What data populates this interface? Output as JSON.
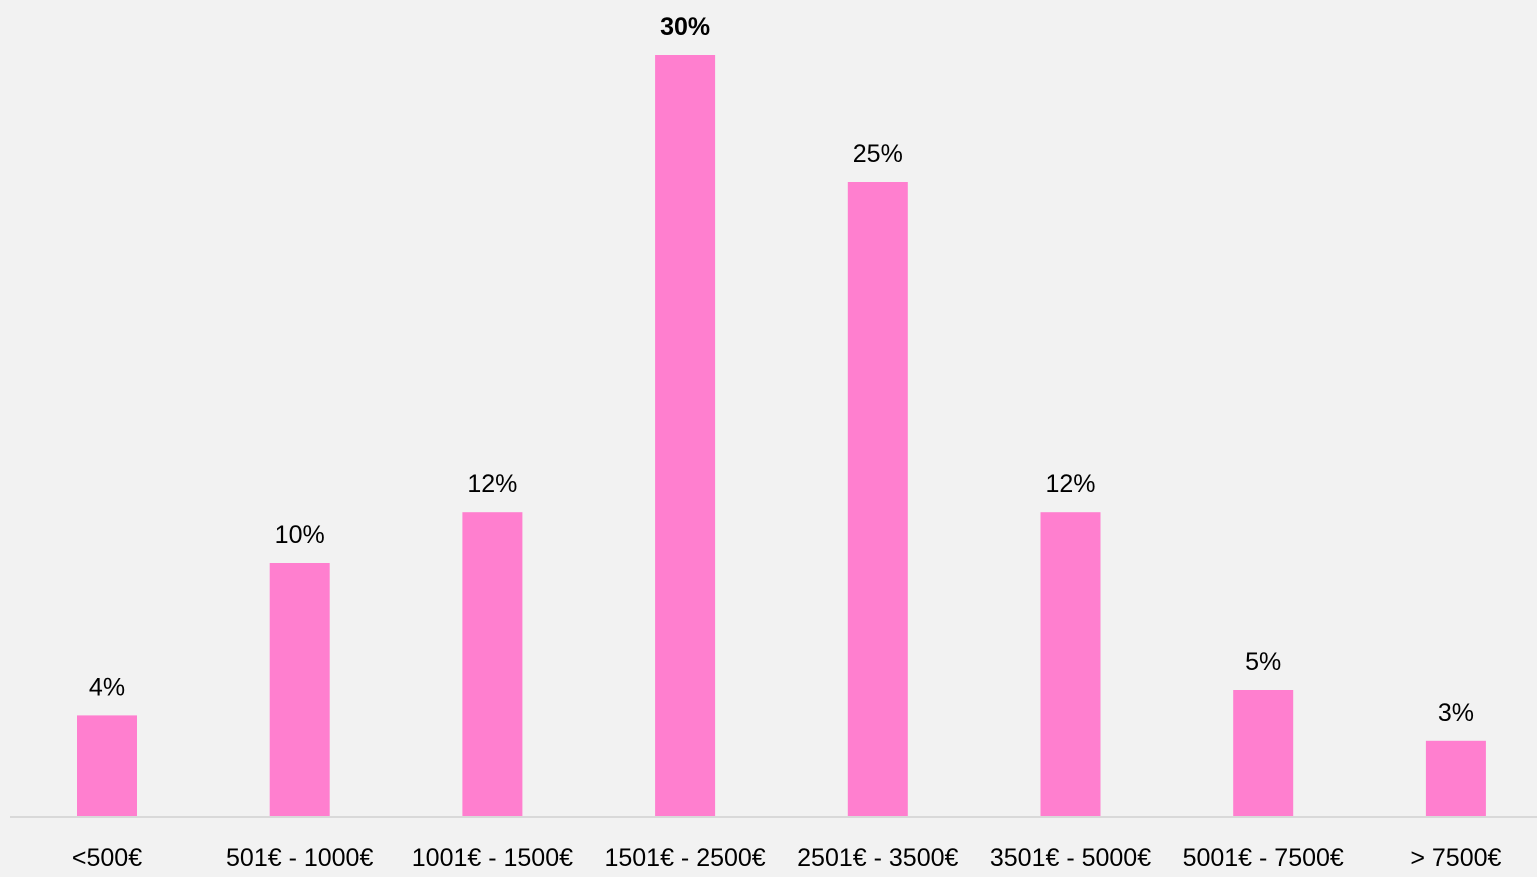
{
  "chart_data": {
    "type": "bar",
    "title": "",
    "xlabel": "",
    "ylabel": "",
    "categories": [
      "<500€",
      "501€ - 1000€",
      "1001€ - 1500€",
      "1501€ - 2500€",
      "2501€ - 3500€",
      "3501€ - 5000€",
      "5001€ - 7500€",
      "> 7500€"
    ],
    "series": [
      {
        "values": [
          4,
          10,
          12,
          30,
          25,
          12,
          5,
          3
        ]
      }
    ],
    "data_labels": [
      "4%",
      "10%",
      "12%",
      "30%",
      "25%",
      "12%",
      "5%",
      "3%"
    ],
    "highlight_index": 3,
    "ylim": [
      0,
      30
    ],
    "grid": false,
    "legend": "none",
    "colors": {
      "bar": "#ff7fcf",
      "background": "#f2f2f2",
      "axis": "#d9d9d9",
      "text": "#000000"
    }
  }
}
